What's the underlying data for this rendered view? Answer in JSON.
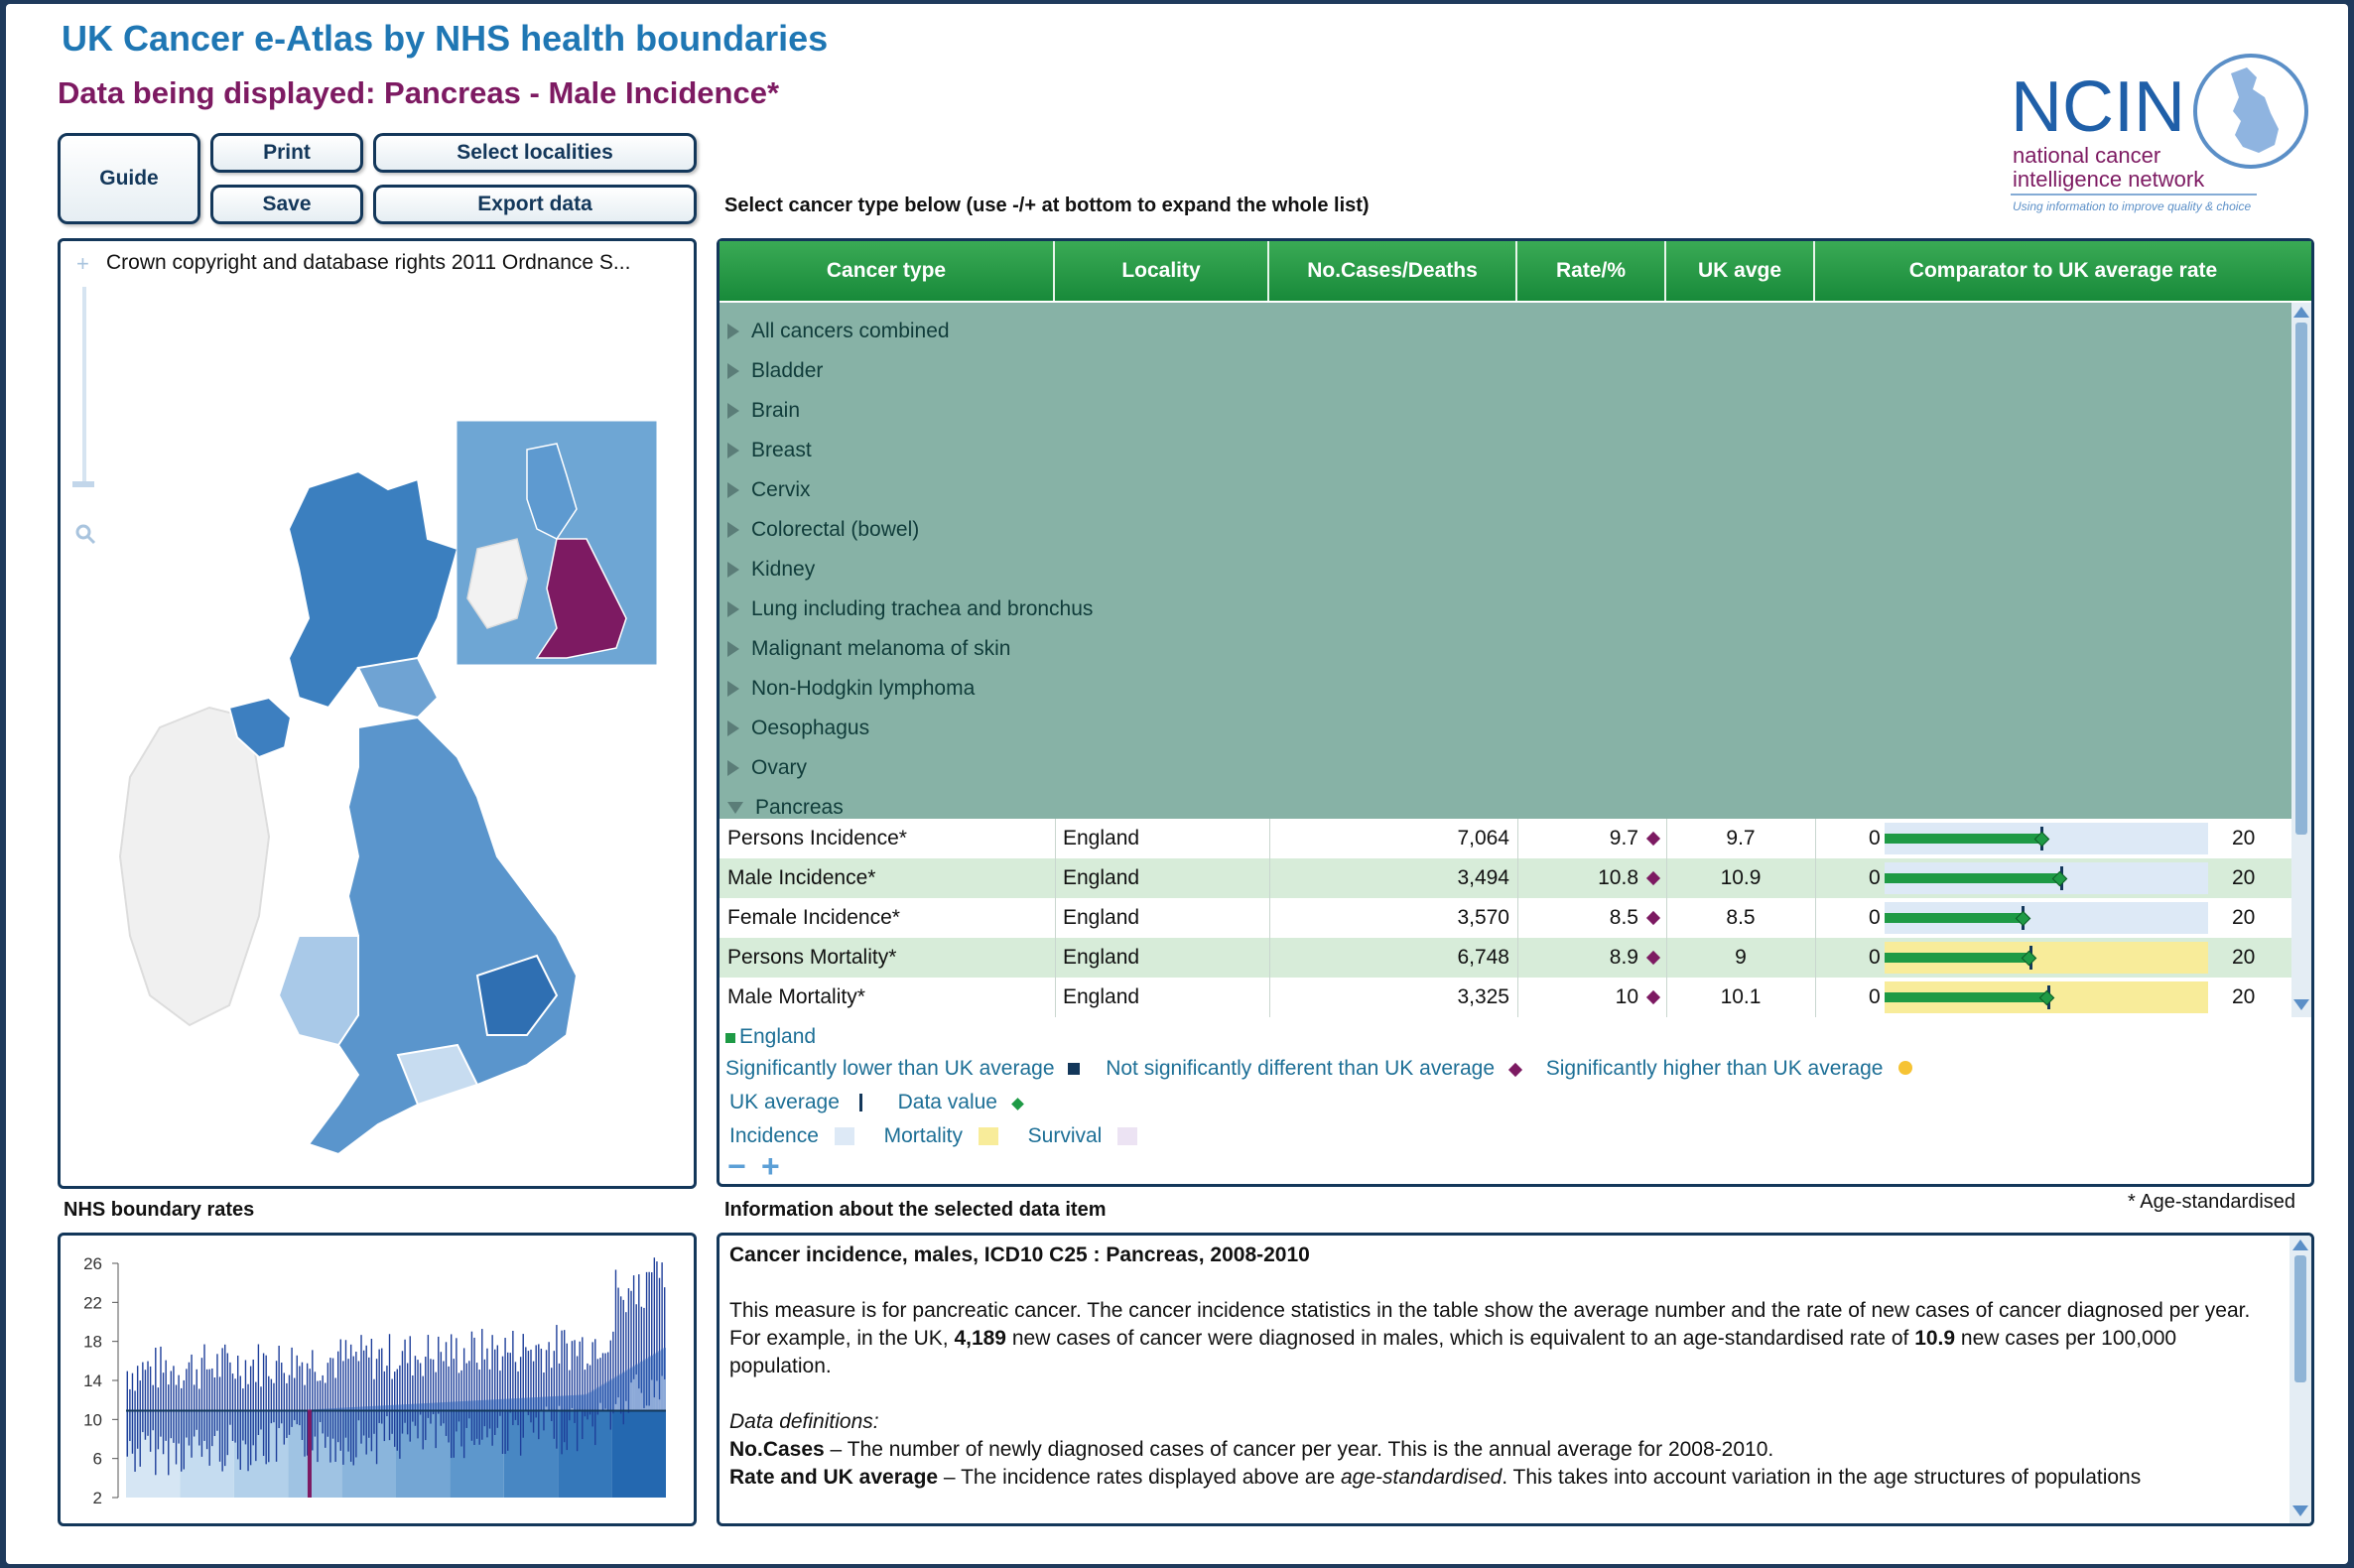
{
  "header": {
    "title": "UK Cancer e-Atlas by NHS health boundaries",
    "subtitle": "Data being displayed: Pancreas - Male Incidence*"
  },
  "buttons": {
    "guide": "Guide",
    "print": "Print",
    "save": "Save",
    "select_localities": "Select localities",
    "export_data": "Export data"
  },
  "logo": {
    "name": "NCIN",
    "line1": "national cancer",
    "line2": "intelligence network",
    "tagline": "Using information to improve quality & choice"
  },
  "map": {
    "copyright": "Crown copyright and database rights 2011 Ordnance S..."
  },
  "table": {
    "instruction": "Select cancer type below (use -/+ at bottom to expand the whole list)",
    "headers": [
      "Cancer type",
      "Locality",
      "No.Cases/Deaths",
      "Rate/%",
      "UK avge",
      "Comparator to UK average rate"
    ],
    "categories": [
      "All cancers combined",
      "Bladder",
      "Brain",
      "Breast",
      "Cervix",
      "Colorectal (bowel)",
      "Kidney",
      "Lung including trachea and bronchus",
      "Malignant melanoma of skin",
      "Non-Hodgkin lymphoma",
      "Oesophagus",
      "Ovary",
      "Pancreas"
    ],
    "rows": [
      {
        "measure": "Persons Incidence*",
        "locality": "England",
        "cases": "7,064",
        "rate": "9.7",
        "uk": "9.7",
        "min": "0",
        "max": "20",
        "value": 9.7,
        "uk_value": 9.7,
        "type": "incidence"
      },
      {
        "measure": "Male Incidence*",
        "locality": "England",
        "cases": "3,494",
        "rate": "10.8",
        "uk": "10.9",
        "min": "0",
        "max": "20",
        "value": 10.8,
        "uk_value": 10.9,
        "type": "incidence"
      },
      {
        "measure": "Female Incidence*",
        "locality": "England",
        "cases": "3,570",
        "rate": "8.5",
        "uk": "8.5",
        "min": "0",
        "max": "20",
        "value": 8.5,
        "uk_value": 8.5,
        "type": "incidence"
      },
      {
        "measure": "Persons Mortality*",
        "locality": "England",
        "cases": "6,748",
        "rate": "8.9",
        "uk": "9",
        "min": "0",
        "max": "20",
        "value": 8.9,
        "uk_value": 9,
        "type": "mortality"
      },
      {
        "measure": "Male Mortality*",
        "locality": "England",
        "cases": "3,325",
        "rate": "10",
        "uk": "10.1",
        "min": "0",
        "max": "20",
        "value": 10,
        "uk_value": 10.1,
        "type": "mortality"
      }
    ]
  },
  "legend": {
    "england": "England",
    "sig_lower": "Significantly lower than UK average",
    "not_sig": "Not significantly different than UK average",
    "sig_higher": "Significantly higher than UK average",
    "uk_average": "UK average",
    "data_value": "Data value",
    "incidence": "Incidence",
    "mortality": "Mortality",
    "survival": "Survival",
    "minus": "−",
    "plus": "+"
  },
  "colors": {
    "green": "#1e9a45",
    "incidence": "#dde9f6",
    "mortality": "#f8ec9a",
    "survival": "#ece3f3",
    "england": "#7d1a62",
    "navy": "#13375a"
  },
  "boundary_chart": {
    "heading": "NHS boundary rates",
    "chart_data": {
      "type": "bar",
      "y_ticks": [
        "26",
        "22",
        "18",
        "14",
        "10",
        "6",
        "2"
      ],
      "ylim": [
        2,
        26
      ],
      "uk_average": 10.9
    }
  },
  "info": {
    "heading": "Information about the selected data item",
    "footnote": "* Age-standardised",
    "title": "Cancer incidence, males, ICD10 C25 : Pancreas, 2008-2010",
    "para1": "This measure is for pancreatic cancer. The cancer incidence statistics in the table show the average number and the rate of new cases of cancer diagnosed per year.",
    "para2_a": "For example, in the UK, ",
    "para2_b": "4,189",
    "para2_c": " new cases of cancer were diagnosed in males, which is equivalent to an age-standardised rate of ",
    "para2_d": "10.9",
    "para2_e": " new cases per 100,000  population.",
    "defs_heading": "Data definitions:",
    "def1_term": "No.Cases",
    "def1_text": " – The number of newly diagnosed cases of cancer per year. This is the annual average for 2008-2010.",
    "def2_term": "Rate and UK average",
    "def2_text_a": " – The incidence rates displayed above are ",
    "def2_text_b": "age-standardised",
    "def2_text_c": ". This takes into account variation in the age structures of populations"
  }
}
